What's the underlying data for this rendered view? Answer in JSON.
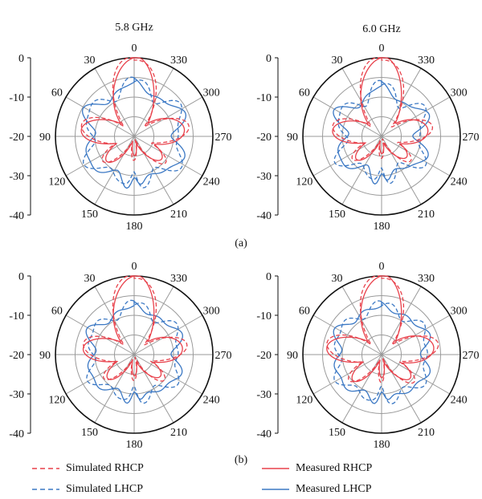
{
  "chart_data": {
    "type": "polar-line",
    "column_titles": [
      "5.8 GHz",
      "6.0 GHz"
    ],
    "row_labels": [
      "(a)",
      "(b)"
    ],
    "radial_range": [
      -40,
      0
    ],
    "radial_ticks": [
      0,
      -10,
      -20,
      -30,
      -40
    ],
    "angle_ticks": [
      0,
      30,
      60,
      90,
      120,
      150,
      180,
      210,
      240,
      270,
      300,
      330
    ],
    "angle_direction": "counterclockwise",
    "zero_location": "top",
    "legend": [
      {
        "name": "Simulated RHCP",
        "color": "#e8414b",
        "dash": true
      },
      {
        "name": "Measured RHCP",
        "color": "#e8414b",
        "dash": false
      },
      {
        "name": "Simulated LHCP",
        "color": "#3b78c4",
        "dash": true
      },
      {
        "name": "Measured LHCP",
        "color": "#3b78c4",
        "dash": false
      }
    ],
    "panels": [
      {
        "row": 0,
        "col": 0,
        "series": {
          "rhcp": {
            "main": 0,
            "side": -13,
            "side_angle": 80,
            "back": -29
          },
          "lhcp": {
            "fwd": -14,
            "side": -18,
            "back": -27,
            "petals": 6
          }
        }
      },
      {
        "row": 0,
        "col": 1,
        "series": {
          "rhcp": {
            "main": 0,
            "side": -15,
            "side_angle": 80,
            "back": -30
          },
          "lhcp": {
            "fwd": -16,
            "side": -21,
            "back": -26,
            "petals": 6
          }
        }
      },
      {
        "row": 1,
        "col": 0,
        "series": {
          "rhcp": {
            "main": 0,
            "side": -14,
            "side_angle": 80,
            "back": -28
          },
          "lhcp": {
            "fwd": -16,
            "side": -18,
            "back": -26,
            "petals": 6
          }
        }
      },
      {
        "row": 1,
        "col": 1,
        "series": {
          "rhcp": {
            "main": 0,
            "side": -12,
            "side_angle": 80,
            "back": -27
          },
          "lhcp": {
            "fwd": -16,
            "side": -17,
            "back": -30,
            "petals": 6
          }
        }
      }
    ]
  }
}
